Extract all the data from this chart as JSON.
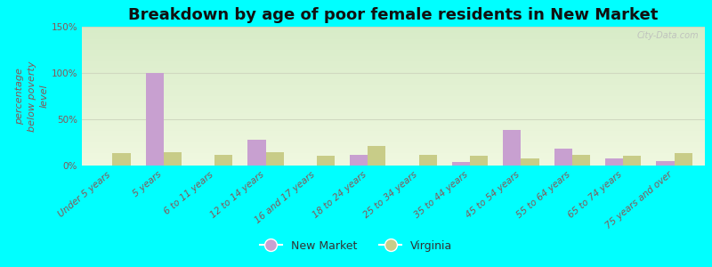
{
  "title": "Breakdown by age of poor female residents in New Market",
  "ylabel": "percentage\nbelow poverty\nlevel",
  "categories": [
    "Under 5 years",
    "5 years",
    "6 to 11 years",
    "12 to 14 years",
    "16 and 17 years",
    "18 to 24 years",
    "25 to 34 years",
    "35 to 44 years",
    "45 to 54 years",
    "55 to 64 years",
    "65 to 74 years",
    "75 years and over"
  ],
  "new_market": [
    0,
    100,
    0,
    28,
    0,
    12,
    0,
    4,
    38,
    18,
    8,
    5
  ],
  "virginia": [
    13,
    14,
    12,
    14,
    11,
    21,
    12,
    11,
    8,
    12,
    11,
    13
  ],
  "new_market_color": "#c8a0d0",
  "virginia_color": "#c8cc88",
  "bar_width": 0.35,
  "ylim": [
    0,
    150
  ],
  "yticks": [
    0,
    50,
    100,
    150
  ],
  "ytick_labels": [
    "0%",
    "50%",
    "100%",
    "150%"
  ],
  "background_color": "#00ffff",
  "title_color": "#111111",
  "axis_label_color": "#885555",
  "tick_label_color": "#885555",
  "legend_new_market": "New Market",
  "legend_virginia": "Virginia",
  "title_fontsize": 13,
  "axis_label_fontsize": 8,
  "tick_fontsize": 7.5,
  "legend_fontsize": 9,
  "watermark": "City-Data.com",
  "grid_color": "#d0d8c0",
  "plot_bg_top": "#d8ecc8",
  "plot_bg_bottom": "#f0f8e0"
}
